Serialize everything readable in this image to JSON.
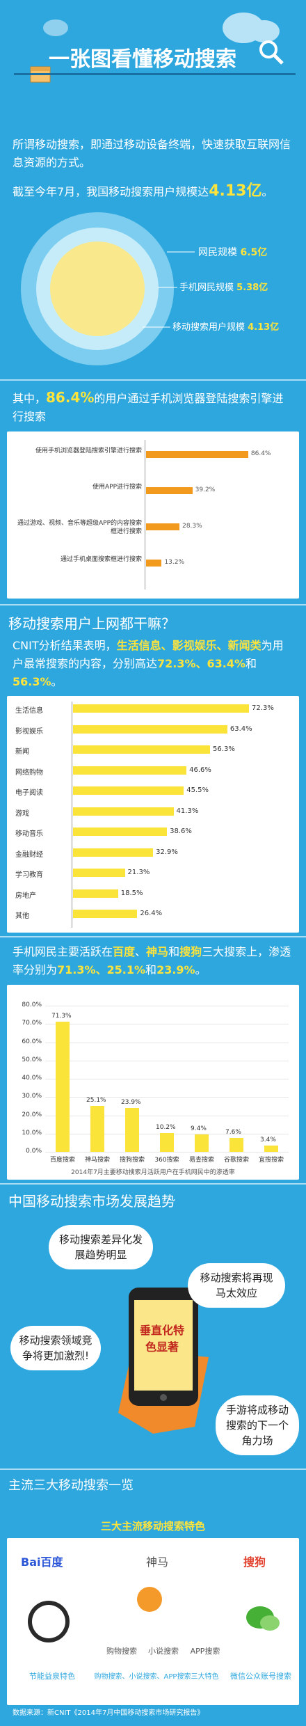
{
  "header": {
    "title": "一张图看懂移动搜索"
  },
  "intro": {
    "p1": "所谓移动搜索，即通过移动设备终端，快速获取互联网信息资源的方式。",
    "p2_prefix": "截至今年7月，我国移动搜索用户规模达",
    "p2_highlight": "4.13亿",
    "p2_suffix": "。"
  },
  "rings": [
    {
      "label": "网民规模",
      "value": "6.5亿"
    },
    {
      "label": "手机网民规模",
      "value": "5.38亿"
    },
    {
      "label": "移动搜索用户规模",
      "value": "4.13亿"
    }
  ],
  "browser": {
    "p_prefix": "其中，",
    "p_highlight": "86.4%",
    "p_suffix": "的用户通过手机浏览器登陆搜索引擎进行搜索",
    "chart_data": {
      "type": "bar",
      "categories": [
        "使用手机浏览器登陆搜索引擎进行搜索",
        "使用APP进行搜索",
        "通过游戏、视频、音乐等超级APP的内容搜索框进行搜索",
        "通过手机桌面搜索框进行搜索"
      ],
      "values": [
        86.4,
        39.2,
        28.3,
        13.2
      ],
      "labels": [
        "86.4%",
        "39.2%",
        "28.3%",
        "13.2%"
      ]
    }
  },
  "usage": {
    "heading": "移动搜索用户上网都干嘛？",
    "p_prefix": "CNIT分析结果表明，",
    "p_h1": "生活信息、影视娱乐、新闻类",
    "p_mid": "为用户最常搜索的内容，分别高达",
    "p_h2": "72.3%、63.4%",
    "p_and": "和",
    "p_h3": "56.3%",
    "p_end": "。",
    "chart_data": {
      "type": "bar",
      "categories": [
        "生活信息",
        "影视娱乐",
        "新闻",
        "网络购物",
        "电子阅读",
        "游戏",
        "移动音乐",
        "金融财经",
        "学习教育",
        "房地产",
        "其他"
      ],
      "values": [
        72.3,
        63.4,
        56.3,
        46.6,
        45.5,
        41.3,
        38.6,
        32.9,
        21.3,
        18.5,
        26.4
      ],
      "labels": [
        "72.3%",
        "63.4%",
        "56.3%",
        "46.6%",
        "45.5%",
        "41.3%",
        "38.6%",
        "32.9%",
        "21.3%",
        "18.5%",
        "26.4%"
      ]
    }
  },
  "penetration": {
    "p_prefix": "手机网民主要活跃在",
    "h1": "百度",
    "sep1": "、",
    "h2": "神马",
    "sep2": "和",
    "h3": "搜狗",
    "p_mid": "三大搜索上，渗透率分别为",
    "v1": "71.3%、25.1%",
    "and": "和",
    "v2": "23.9%",
    "end": "。",
    "chart_data": {
      "type": "bar",
      "categories": [
        "百度搜索",
        "神马搜索",
        "搜狗搜索",
        "360搜索",
        "易查搜索",
        "谷歌搜索",
        "宜搜搜索"
      ],
      "values": [
        71.3,
        25.1,
        23.9,
        10.2,
        9.4,
        7.6,
        3.4
      ],
      "labels": [
        "71.3%",
        "25.1%",
        "23.9%",
        "10.2%",
        "9.4%",
        "7.6%",
        "3.4%"
      ],
      "yticks": [
        "80.0%",
        "70.0%",
        "60.0%",
        "50.0%",
        "40.0%",
        "30.0%",
        "20.0%",
        "10.0%",
        "0.0%"
      ],
      "ylim": [
        0,
        80
      ],
      "caption": "2014年7月主要移动搜索月活跃用户在手机网民中的渗透率"
    }
  },
  "trend": {
    "heading": "中国移动搜索市场发展趋势",
    "b1": "移动搜索差异化发展趋势明显",
    "b2": "移动搜索将再现马太效应",
    "b3": "移动搜索领域竞争将更加激烈!",
    "b4": "手游将成移动搜索的下一个角力场",
    "phone_text": "垂直化特色显著"
  },
  "engines": {
    "heading": "主流三大移动搜索一览",
    "banner": "三大主流移动搜索特色",
    "baidu": "Bai百度",
    "shenma": "神马",
    "sogou": "搜狗",
    "shenma_items": [
      "购物搜索",
      "小说搜索",
      "APP搜索"
    ],
    "f1": "节能益泉特色",
    "f2": "购物搜索、小说搜索、APP搜索三大特色",
    "f3": "微信公众账号搜索",
    "source": "数据来源：新CNIT《2014年7月中国移动搜索市场研究报告》"
  },
  "colors": {
    "bg": "#2ea7de",
    "highlight": "#fde43d",
    "orange": "#f29a1e",
    "yellow_bar": "#fae43a"
  }
}
